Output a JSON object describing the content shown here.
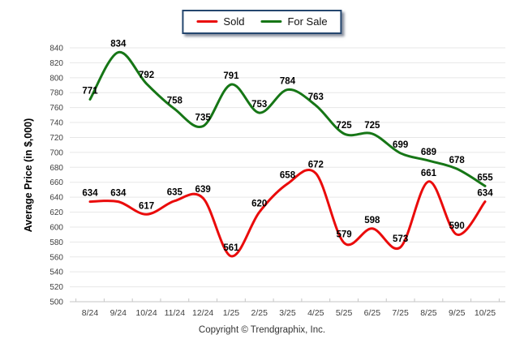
{
  "chart_data": {
    "type": "line",
    "title": "",
    "xlabel": "",
    "ylabel": "Average Price (in $,000)",
    "categories": [
      "8/24",
      "9/24",
      "10/24",
      "11/24",
      "12/24",
      "1/25",
      "2/25",
      "3/25",
      "4/25",
      "5/25",
      "6/25",
      "7/25",
      "8/25",
      "9/25",
      "10/25"
    ],
    "series": [
      {
        "name": "Sold",
        "color": "#EA0B0B",
        "values": [
          634,
          634,
          617,
          635,
          639,
          561,
          620,
          658,
          672,
          579,
          598,
          573,
          661,
          590,
          634
        ]
      },
      {
        "name": "For Sale",
        "color": "#167616",
        "values": [
          771,
          834,
          792,
          758,
          735,
          791,
          753,
          784,
          763,
          725,
          725,
          699,
          689,
          678,
          655
        ]
      }
    ],
    "ylim": [
      500,
      840
    ],
    "ytick_step": 20,
    "grid": true,
    "data_labels": true,
    "legend_position": "top-center",
    "smooth": true
  },
  "legend": {
    "border_color": "#24466E"
  },
  "footer": {
    "copyright": "Copyright © Trendgraphix, Inc."
  }
}
